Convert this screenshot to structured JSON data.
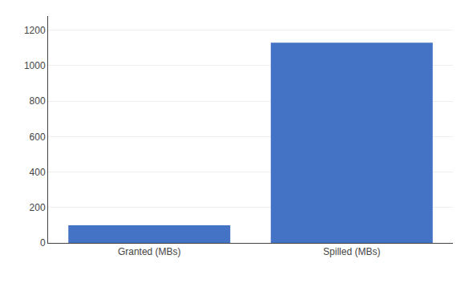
{
  "chart_data": {
    "type": "bar",
    "categories": [
      "Granted (MBs)",
      "Spilled (MBs)"
    ],
    "values": [
      100,
      1130
    ],
    "color": "#4472C4",
    "ylim": [
      0,
      1280
    ],
    "yticks": [
      0,
      200,
      400,
      600,
      800,
      1000,
      1200
    ],
    "grid": true
  }
}
